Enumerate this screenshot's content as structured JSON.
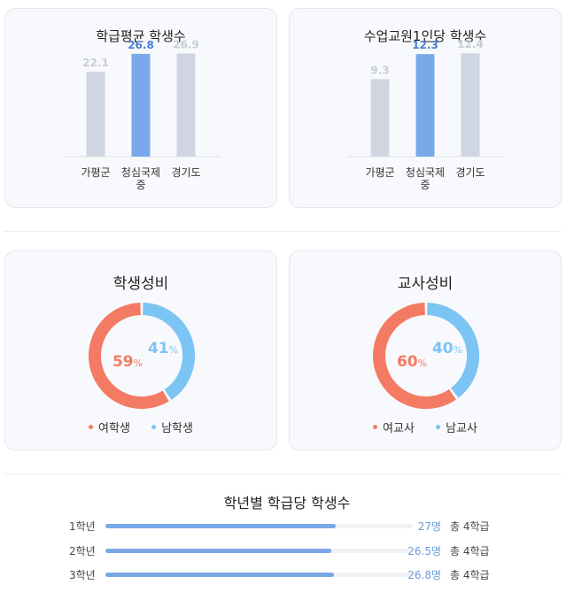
{
  "cards": {
    "class_avg": {
      "title": "학급평균 학생수",
      "chart_data": {
        "type": "bar",
        "categories": [
          "가평군",
          "청심국제\n중",
          "경기도"
        ],
        "values": [
          22.1,
          26.8,
          26.9
        ],
        "value_labels": [
          "22.1",
          "26.8",
          "26.9"
        ],
        "ylim": [
          0,
          30
        ],
        "highlight_index": 1
      }
    },
    "per_teacher": {
      "title": "수업교원1인당 학생수",
      "chart_data": {
        "type": "bar",
        "categories": [
          "가평군",
          "청심국제\n중",
          "경기도"
        ],
        "values": [
          9.3,
          12.3,
          12.4
        ],
        "value_labels": [
          "9.3",
          "12.3",
          "12.4"
        ],
        "ylim": [
          0,
          13.8
        ],
        "highlight_index": 1
      }
    },
    "student_gender": {
      "title": "학생성비",
      "chart_data": {
        "type": "pie",
        "slices": [
          {
            "label": "여학생",
            "value": 59,
            "color": "#f47b63"
          },
          {
            "label": "남학생",
            "value": 41,
            "color": "#7cc4f4"
          }
        ],
        "pct_labels": [
          "59",
          "41"
        ],
        "unit": "%"
      }
    },
    "teacher_gender": {
      "title": "교사성비",
      "chart_data": {
        "type": "pie",
        "slices": [
          {
            "label": "여교사",
            "value": 60,
            "color": "#f47b63"
          },
          {
            "label": "남교사",
            "value": 40,
            "color": "#7cc4f4"
          }
        ],
        "pct_labels": [
          "60",
          "40"
        ],
        "unit": "%"
      }
    }
  },
  "grades": {
    "title": "학년별 학급당 학생수",
    "chart_data": {
      "type": "bar",
      "orientation": "horizontal",
      "max": 36,
      "rows": [
        {
          "label": "1학년",
          "value": 27,
          "value_label": "27명",
          "total": "총 4학급"
        },
        {
          "label": "2학년",
          "value": 26.5,
          "value_label": "26.5명",
          "total": "총 4학급"
        },
        {
          "label": "3학년",
          "value": 26.8,
          "value_label": "26.8명",
          "total": "총 4학급"
        }
      ]
    }
  },
  "colors": {
    "bar_muted": "#d0d5e2",
    "bar_highlight": "#79a9ea",
    "label_muted": "#c8cdd9",
    "label_highlight": "#4a7fd0",
    "female": "#f47b63",
    "male": "#7cc4f4"
  }
}
